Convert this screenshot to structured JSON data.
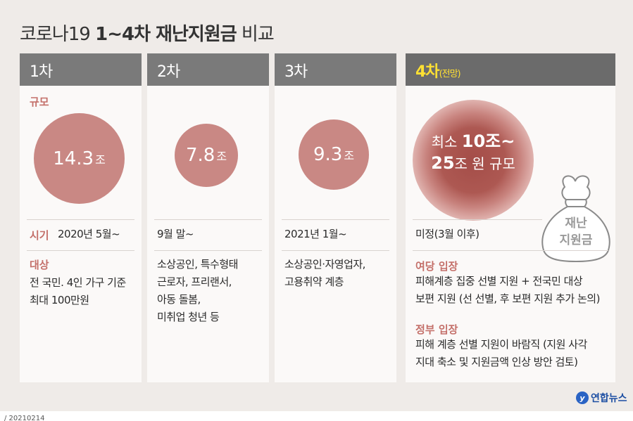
{
  "title": {
    "prefix": "코로나19 ",
    "bold": "1~4차 재난지원금",
    "suffix": " 비교"
  },
  "columns": [
    {
      "header": "1차",
      "scale_label": "규모",
      "amount_num": "14.3",
      "amount_unit": "조",
      "period_label": "시기",
      "period": "2020년 5월~",
      "target_label": "대상",
      "target_lines": [
        "전 국민. 4인 가구 기준",
        "최대 100만원"
      ]
    },
    {
      "header": "2차",
      "amount_num": "7.8",
      "amount_unit": "조",
      "period": "9월 말~",
      "target_lines": [
        "소상공인, 특수형태",
        "근로자, 프리랜서,",
        "아동 돌봄,",
        "미취업 청년 등"
      ]
    },
    {
      "header": "3차",
      "amount_num": "9.3",
      "amount_unit": "조",
      "period": "2021년 1월~",
      "target_lines": [
        "소상공인·자영업자,",
        "고용취약 계층"
      ]
    },
    {
      "header": "4차",
      "header_note": "(전망)",
      "amount_line1_pre": "최소 ",
      "amount_line1_bold": "10조~",
      "amount_line2_bold": "25",
      "amount_line2_post": "조 원 규모",
      "period": "미정(3월 이후)",
      "ruling_label": "여당 입장",
      "ruling_lines": [
        "피해계층 집중 선별 지원 + 전국민 대상",
        "보편 지원 (선 선별, 후 보편 지원 추가 논의)"
      ],
      "gov_label": "정부 입장",
      "gov_lines": [
        "피해 계층 선별 지원이 바람직 (지원 사각",
        "지대 축소 및 지원금액 인상 방안 검토)"
      ],
      "bag_text": [
        "재난",
        "지원금"
      ]
    }
  ],
  "source": {
    "logo_text": "연합뉴스",
    "code": "/ 20210214"
  },
  "colors": {
    "header_bg": "#7a7a7a",
    "accent_label": "#c4706a",
    "circle": "#c98884",
    "highlight": "#ffe033",
    "logo": "#1d4fa3"
  }
}
